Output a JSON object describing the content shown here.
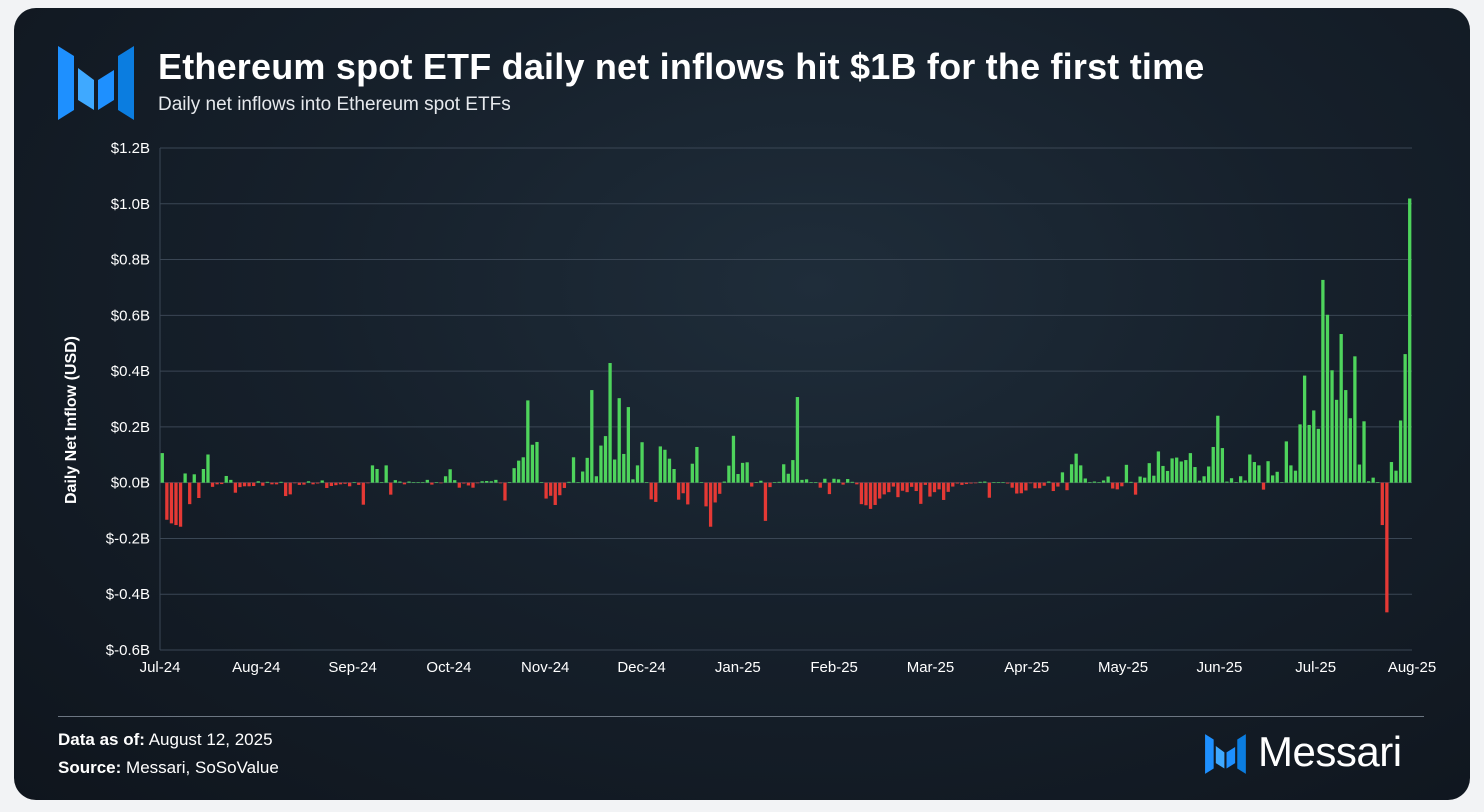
{
  "header": {
    "title": "Ethereum spot ETF daily net inflows hit $1B for the first time",
    "subtitle": "Daily net inflows into Ethereum spot ETFs"
  },
  "footer": {
    "data_label": "Data as of:",
    "data_value": "August 12, 2025",
    "source_label": "Source:",
    "source_value": "Messari, SoSoValue",
    "brand_name": "Messari"
  },
  "icons": {
    "logo": "messari-logo-icon",
    "brand": "messari-brand-icon"
  },
  "colors": {
    "positive": "#4ed45c",
    "negative": "#e53935",
    "logo": "#1e90ff",
    "background": "#16202b"
  },
  "chart_data": {
    "type": "bar",
    "title": "Ethereum spot ETF daily net inflows hit $1B for the first time",
    "subtitle": "Daily net inflows into Ethereum spot ETFs",
    "ylabel": "Daily Net Inflow (USD)",
    "xlabel": "",
    "units": "USD billions",
    "ylim": [
      -0.6,
      1.2
    ],
    "yticks": [
      {
        "value": 1.2,
        "label": "$1.2B"
      },
      {
        "value": 1.0,
        "label": "$1.0B"
      },
      {
        "value": 0.8,
        "label": "$0.8B"
      },
      {
        "value": 0.6,
        "label": "$0.6B"
      },
      {
        "value": 0.4,
        "label": "$0.4B"
      },
      {
        "value": 0.2,
        "label": "$0.2B"
      },
      {
        "value": 0.0,
        "label": "$0.0B"
      },
      {
        "value": -0.2,
        "label": "$-0.2B"
      },
      {
        "value": -0.4,
        "label": "$-0.4B"
      },
      {
        "value": -0.6,
        "label": "$-0.6B"
      }
    ],
    "xticks": [
      "Jul-24",
      "Aug-24",
      "Sep-24",
      "Oct-24",
      "Nov-24",
      "Dec-24",
      "Jan-25",
      "Feb-25",
      "Mar-25",
      "Apr-25",
      "May-25",
      "Jun-25",
      "Jul-25",
      "Aug-25"
    ],
    "grid": true,
    "legend": "none",
    "date_range": [
      "2024-07-23",
      "2025-08-11"
    ],
    "values": [
      0.106,
      -0.133,
      -0.146,
      -0.152,
      -0.158,
      0.033,
      -0.077,
      0.03,
      -0.055,
      0.049,
      0.101,
      -0.015,
      -0.006,
      -0.005,
      0.024,
      0.01,
      -0.036,
      -0.016,
      -0.013,
      -0.013,
      -0.012,
      0.005,
      -0.011,
      0.003,
      -0.006,
      -0.006,
      0.003,
      -0.048,
      -0.042,
      -0.001,
      -0.008,
      -0.007,
      0.005,
      -0.006,
      -0.003,
      0.008,
      -0.019,
      -0.012,
      -0.009,
      -0.006,
      -0.004,
      -0.013,
      0.001,
      -0.008,
      -0.079,
      -0.001,
      0.062,
      0.049,
      0.001,
      0.062,
      -0.043,
      0.009,
      0.004,
      -0.006,
      0.004,
      0.001,
      0.001,
      0.001,
      0.01,
      -0.007,
      0.001,
      -0.002,
      0.023,
      0.048,
      0.009,
      -0.018,
      -0.003,
      -0.01,
      -0.018,
      -0.001,
      0.005,
      0.006,
      0.005,
      0.01,
      -0.002,
      -0.064,
      0.002,
      0.052,
      0.079,
      0.091,
      0.295,
      0.136,
      0.146,
      0.002,
      -0.057,
      -0.047,
      -0.08,
      -0.045,
      -0.019,
      0.003,
      0.091,
      0.001,
      0.04,
      0.089,
      0.332,
      0.023,
      0.133,
      0.167,
      0.429,
      0.083,
      0.303,
      0.103,
      0.271,
      0.012,
      0.062,
      0.145,
      0.001,
      -0.06,
      -0.069,
      0.13,
      0.118,
      0.086,
      0.049,
      -0.061,
      -0.038,
      -0.078,
      0.068,
      0.128,
      0.001,
      -0.085,
      -0.158,
      -0.071,
      -0.04,
      0.004,
      0.061,
      0.168,
      0.031,
      0.071,
      0.073,
      -0.014,
      0.001,
      0.007,
      -0.137,
      -0.016,
      0.001,
      0.003,
      0.066,
      0.032,
      0.081,
      0.307,
      0.01,
      0.012,
      0.002,
      0.002,
      -0.018,
      0.014,
      -0.041,
      0.014,
      0.012,
      -0.007,
      0.013,
      0.003,
      -0.006,
      -0.077,
      -0.081,
      -0.094,
      -0.08,
      -0.057,
      -0.042,
      -0.034,
      -0.014,
      -0.052,
      -0.029,
      -0.034,
      -0.015,
      -0.03,
      -0.076,
      -0.008,
      -0.05,
      -0.034,
      -0.024,
      -0.062,
      -0.033,
      -0.014,
      -0.003,
      -0.008,
      -0.005,
      -0.003,
      -0.001,
      0.003,
      0.004,
      -0.054,
      0.001,
      0.001,
      0.001,
      -0.003,
      -0.018,
      -0.039,
      -0.038,
      -0.028,
      -0.002,
      -0.02,
      -0.02,
      -0.011,
      0.004,
      -0.03,
      -0.014,
      0.037,
      -0.027,
      0.066,
      0.104,
      0.062,
      0.015,
      0.002,
      0.004,
      0.001,
      0.008,
      0.022,
      -0.021,
      -0.024,
      -0.013,
      0.064,
      0.003,
      -0.043,
      0.022,
      0.018,
      0.07,
      0.025,
      0.112,
      0.06,
      0.042,
      0.087,
      0.09,
      0.076,
      0.081,
      0.106,
      0.056,
      0.007,
      0.023,
      0.058,
      0.128,
      0.24,
      0.124,
      0.004,
      0.016,
      0.002,
      0.023,
      0.008,
      0.101,
      0.074,
      0.062,
      -0.025,
      0.077,
      0.026,
      0.039,
      0.001,
      0.148,
      0.062,
      0.043,
      0.209,
      0.384,
      0.207,
      0.259,
      0.193,
      0.727,
      0.602,
      0.403,
      0.297,
      0.533,
      0.332,
      0.231,
      0.453,
      0.065,
      0.22,
      0.005,
      0.018,
      0.002,
      -0.152,
      -0.465,
      0.074,
      0.043,
      0.223,
      0.461,
      1.019
    ]
  }
}
